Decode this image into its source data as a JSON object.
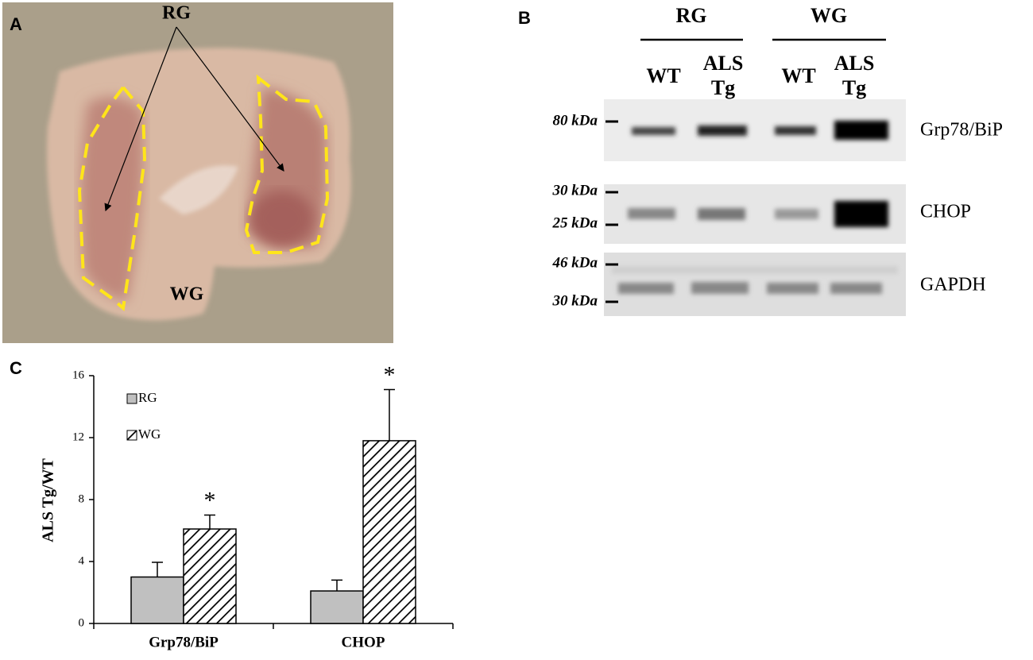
{
  "panel_a": {
    "label": "A",
    "annotations": [
      "RG",
      "WG"
    ]
  },
  "panel_b": {
    "label": "B",
    "groups": [
      "RG",
      "WG"
    ],
    "lanes": [
      "WT",
      "ALS Tg",
      "WT",
      "ALS Tg"
    ],
    "markers": [
      "80 kDa",
      "30 kDa",
      "25 kDa",
      "46 kDa",
      "30 kDa"
    ],
    "proteins": [
      "Grp78/BiP",
      "CHOP",
      "GAPDH"
    ]
  },
  "chart_data": {
    "type": "bar",
    "panel_label": "C",
    "y_label": "ALS Tg/WT",
    "categories": [
      "Grp78/BiP",
      "CHOP"
    ],
    "series": [
      {
        "name": "RG",
        "color": "#c0c0c0",
        "values": [
          3,
          2.1
        ],
        "errors": [
          0.95,
          0.7
        ]
      },
      {
        "name": "WG",
        "color": "#000000",
        "pattern": "hatch",
        "values": [
          6.1,
          11.8
        ],
        "errors": [
          0.9,
          3.3
        ],
        "significance": [
          "*",
          "*"
        ]
      }
    ],
    "ylim": [
      0,
      16
    ],
    "yticks": [
      0,
      4,
      8,
      12,
      16
    ],
    "legend": "upper left",
    "grid": false
  }
}
